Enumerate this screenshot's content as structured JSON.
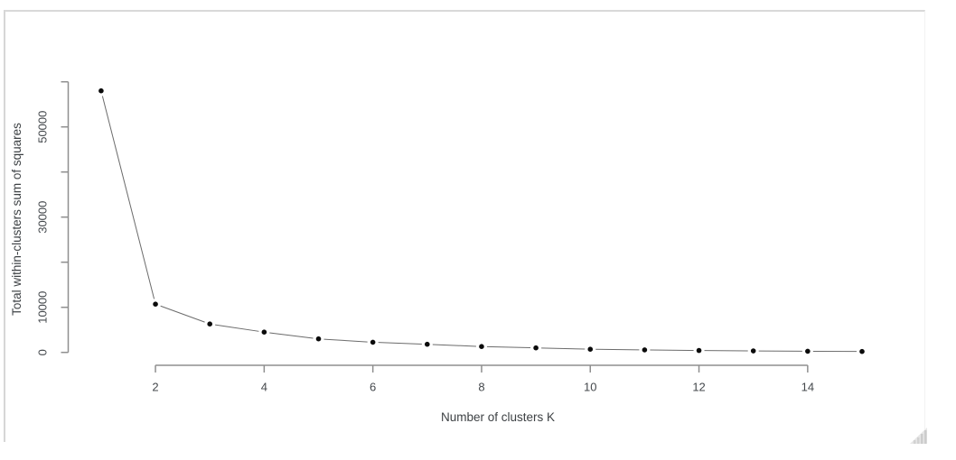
{
  "window": {
    "resize_grip_icon": "resize-grip-icon"
  },
  "colors": {
    "background": "#ffffff",
    "frame_border": "#d9d9d9",
    "axis": "#8f8f8f",
    "tick_text": "#44484c",
    "series_line": "#6b6b6b",
    "point": "#0b0b0b",
    "resize_grip": "#dfdfdf"
  },
  "chart_data": {
    "type": "line",
    "subtype": "R base plot, type='b' (points joined by gapped segments), elbow/scree plot",
    "title": "",
    "xlabel": "Number of clusters K",
    "ylabel": "Total within-clusters sum of squares",
    "x": [
      1,
      2,
      3,
      4,
      5,
      6,
      7,
      8,
      9,
      10,
      11,
      12,
      13,
      14,
      15
    ],
    "values": [
      58000,
      10700,
      6300,
      4500,
      3000,
      2250,
      1800,
      1300,
      1000,
      700,
      550,
      420,
      330,
      250,
      200
    ],
    "xlim": [
      1,
      15
    ],
    "ylim": [
      0,
      60000
    ],
    "x_ticks": [
      2,
      4,
      6,
      8,
      10,
      12,
      14
    ],
    "x_tick_labels": [
      "2",
      "4",
      "6",
      "8",
      "10",
      "12",
      "14"
    ],
    "y_ticks": [
      0,
      10000,
      20000,
      30000,
      40000,
      50000,
      60000
    ],
    "y_tick_labels": [
      "0",
      "10000",
      "",
      "30000",
      "",
      "50000",
      ""
    ],
    "grid": false,
    "legend": false,
    "marker": "filled-circle"
  }
}
